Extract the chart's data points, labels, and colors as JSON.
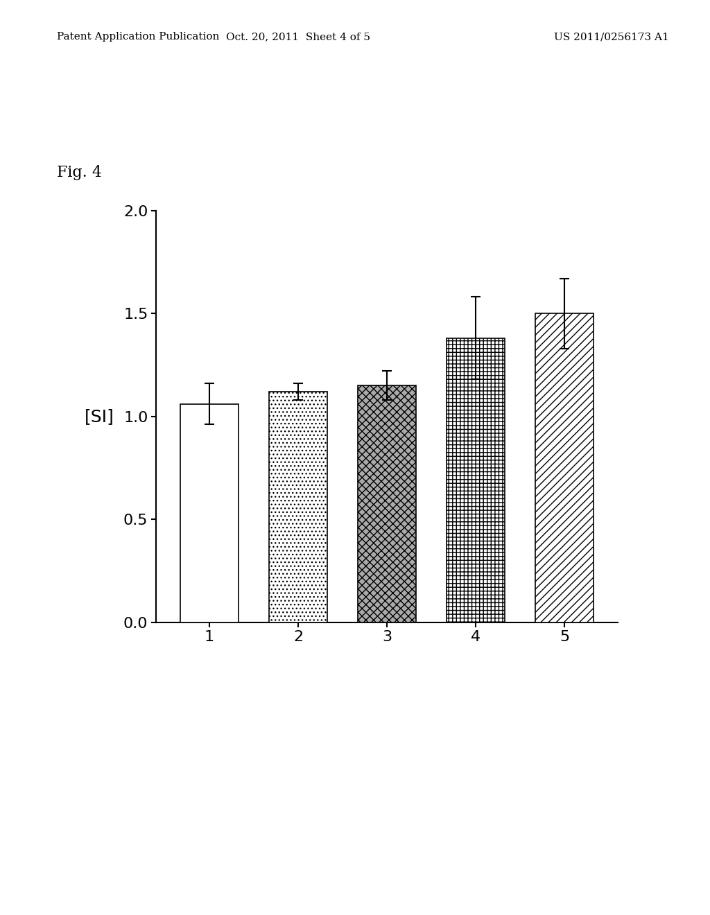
{
  "categories": [
    "1",
    "2",
    "3",
    "4",
    "5"
  ],
  "values": [
    1.06,
    1.12,
    1.15,
    1.38,
    1.5
  ],
  "errors": [
    0.1,
    0.04,
    0.07,
    0.2,
    0.17
  ],
  "ylabel": "[SI]",
  "ylim": [
    0.0,
    2.0
  ],
  "yticks": [
    0.0,
    0.5,
    1.0,
    1.5,
    2.0
  ],
  "background_color": "#ffffff",
  "bar_edge_color": "#000000",
  "bar_width": 0.65,
  "fig_label": "Fig. 4",
  "header_left": "Patent Application Publication",
  "header_center": "Oct. 20, 2011  Sheet 4 of 5",
  "header_right": "US 2011/0256173 A1",
  "patterns": [
    "",
    ".",
    "x",
    "+",
    "//"
  ],
  "pattern_colors": [
    "#ffffff",
    "#ffffff",
    "#808080",
    "#ffffff",
    "#ffffff"
  ],
  "error_capsize": 5,
  "ylabel_fontsize": 18,
  "tick_fontsize": 16,
  "header_fontsize": 11
}
